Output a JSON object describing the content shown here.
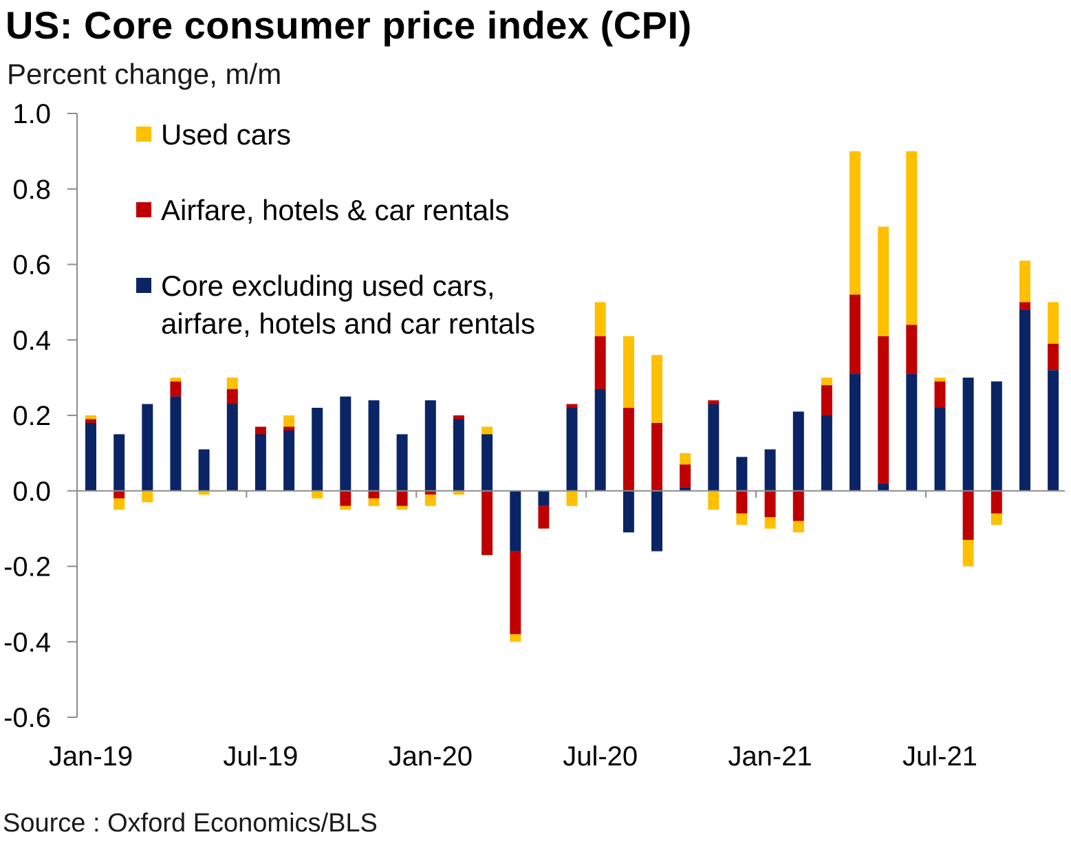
{
  "chart_data": {
    "type": "bar",
    "stacked": true,
    "title": "US: Core consumer price index (CPI)",
    "subtitle": "Percent change, m/m",
    "source": "Source : Oxford Economics/BLS",
    "ylim": [
      -0.6,
      1.0
    ],
    "yticks": [
      "1.0",
      "0.8",
      "0.6",
      "0.4",
      "0.2",
      "0.0",
      "-0.2",
      "-0.4",
      "-0.6"
    ],
    "ytick_values": [
      1.0,
      0.8,
      0.6,
      0.4,
      0.2,
      0.0,
      -0.2,
      -0.4,
      -0.6
    ],
    "x_tick_labels": [
      "Jan-19",
      "Jul-19",
      "Jan-20",
      "Jul-20",
      "Jan-21",
      "Jul-21"
    ],
    "x_tick_indices": [
      0,
      6,
      12,
      18,
      24,
      30
    ],
    "categories": [
      "Jan-19",
      "Feb-19",
      "Mar-19",
      "Apr-19",
      "May-19",
      "Jun-19",
      "Jul-19",
      "Aug-19",
      "Sep-19",
      "Oct-19",
      "Nov-19",
      "Dec-19",
      "Jan-20",
      "Feb-20",
      "Mar-20",
      "Apr-20",
      "May-20",
      "Jun-20",
      "Jul-20",
      "Aug-20",
      "Sep-20",
      "Oct-20",
      "Nov-20",
      "Dec-20",
      "Jan-21",
      "Feb-21",
      "Mar-21",
      "Apr-21",
      "May-21",
      "Jun-21",
      "Jul-21",
      "Aug-21",
      "Sep-21",
      "Oct-21",
      "Nov-21"
    ],
    "legend_position": "top-left",
    "series": [
      {
        "name": "Core excluding used cars, airfare, hotels and car rentals",
        "legend_lines": [
          "Core excluding used cars,",
          "airfare, hotels and car rentals"
        ],
        "color": "#0b2466",
        "values": [
          0.18,
          0.15,
          0.23,
          0.25,
          0.11,
          0.23,
          0.15,
          0.16,
          0.22,
          0.25,
          0.24,
          0.15,
          0.24,
          0.19,
          0.15,
          -0.16,
          -0.04,
          0.22,
          0.27,
          -0.11,
          -0.16,
          0.01,
          0.23,
          0.09,
          0.11,
          0.21,
          0.2,
          0.31,
          0.02,
          0.31,
          0.22,
          0.3,
          0.29,
          0.48,
          0.32
        ]
      },
      {
        "name": "Airfare, hotels & car rentals",
        "color": "#c00000",
        "values": [
          0.01,
          -0.02,
          0.0,
          0.04,
          0.0,
          0.04,
          0.02,
          0.01,
          0.0,
          -0.04,
          -0.02,
          -0.04,
          -0.01,
          0.01,
          -0.17,
          -0.22,
          -0.06,
          0.01,
          0.14,
          0.22,
          0.18,
          0.06,
          0.01,
          -0.06,
          -0.07,
          -0.08,
          0.08,
          0.21,
          0.39,
          0.13,
          0.07,
          -0.13,
          -0.06,
          0.02,
          0.07
        ]
      },
      {
        "name": "Used cars",
        "color": "#ffc000",
        "values": [
          0.01,
          -0.03,
          -0.03,
          0.01,
          -0.01,
          0.03,
          0.0,
          0.03,
          -0.02,
          -0.01,
          -0.02,
          -0.01,
          -0.03,
          -0.01,
          0.02,
          -0.02,
          0.0,
          -0.04,
          0.09,
          0.19,
          0.18,
          0.03,
          -0.05,
          -0.03,
          -0.03,
          -0.03,
          0.02,
          0.38,
          0.29,
          0.46,
          0.01,
          -0.07,
          -0.03,
          0.11,
          0.11
        ]
      }
    ],
    "legend_order": [
      "Used cars",
      "Airfare, hotels & car rentals",
      "Core excluding used cars, airfare, hotels and car rentals"
    ]
  }
}
